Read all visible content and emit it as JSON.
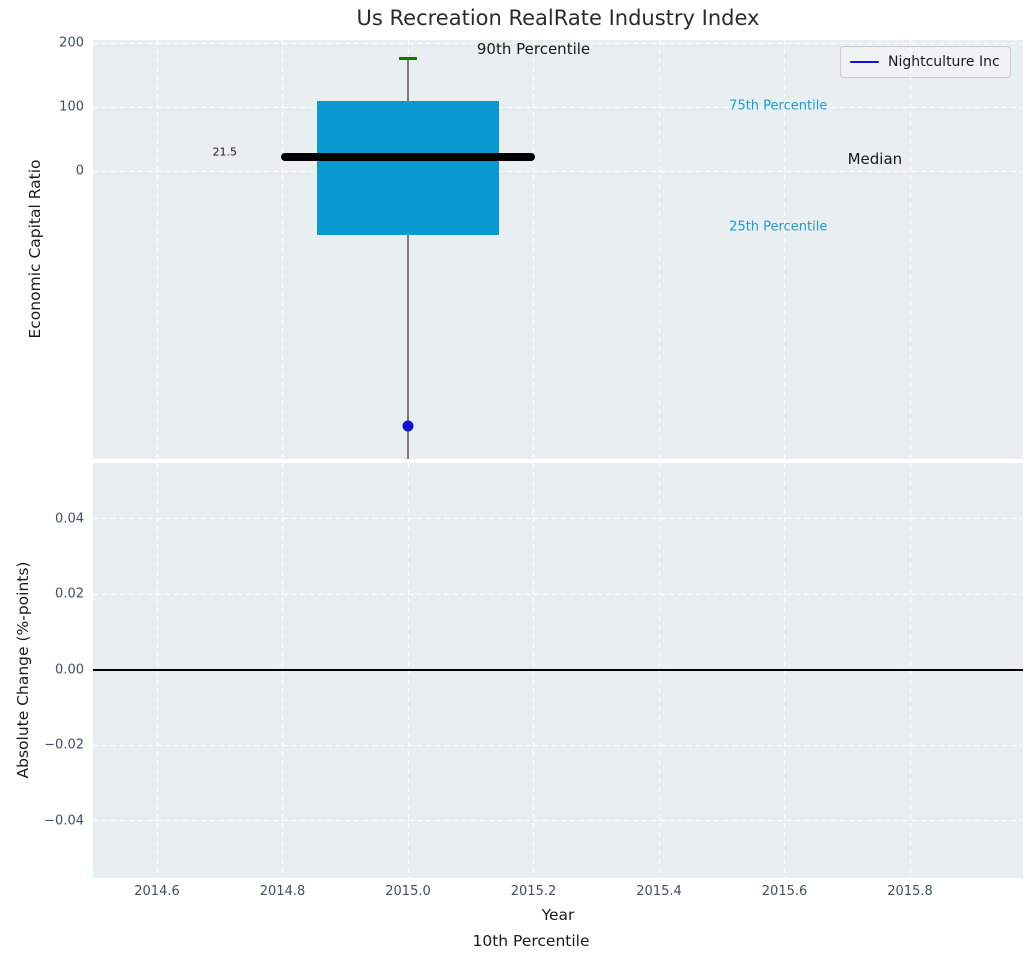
{
  "title": "Us Recreation RealRate Industry Index",
  "legend": {
    "label": "Nightculture Inc"
  },
  "colors": {
    "plot_background": "#e9eef0",
    "box_fill": "#0999d0",
    "percentile_label": "#1e9ccd",
    "whisker_cap_green": "#008001",
    "company_blue": "#1111d6",
    "median_black": "#000000",
    "tick_label": "#3d5066",
    "whisker_gray": "#7b7b7b"
  },
  "chart_data": [
    {
      "type": "boxplot",
      "title": "Us Recreation RealRate Industry Index",
      "ylabel": "Economic Capital Ratio",
      "xlim": [
        2014.498,
        2015.98
      ],
      "ylim": [
        -450,
        204.7
      ],
      "grid": "white dashed on light gray",
      "legend_position": "upper right",
      "ytick_values": [
        0,
        100,
        200
      ],
      "ytick_labels": [
        "0",
        "100",
        "200"
      ],
      "xtick_values": [
        2014.6,
        2014.8,
        2015.0,
        2015.2,
        2015.4,
        2015.6,
        2015.8
      ],
      "box": {
        "x": 2015.0,
        "p90": 176,
        "p75": 109,
        "median": 21.5,
        "p25": -100,
        "p10": null,
        "p10_note": "lower whisker extends below axis range (clipped at plot bottom); labeled under x-axis",
        "box_halfwidth": 0.145,
        "median_halfwidth": 0.202,
        "cap_halfwidth": 0.0145
      },
      "company_point": {
        "name": "Nightculture Inc",
        "x": 2015.0,
        "y": -399
      },
      "annotations": [
        {
          "text": "90th Percentile",
          "x": 2015.2,
          "y": 190.5,
          "size": 15,
          "color": "#1a1a1a"
        },
        {
          "text": "75th Percentile",
          "x": 2015.59,
          "y": 101,
          "size": 13,
          "color": "#1e9ccd"
        },
        {
          "text": "Median",
          "x": 2015.744,
          "y": 19,
          "size": 15,
          "color": "#1a1a1a"
        },
        {
          "text": "25th Percentile",
          "x": 2015.59,
          "y": -88,
          "size": 13,
          "color": "#1e9ccd"
        },
        {
          "text": "21.5",
          "x": 2014.708,
          "y": 29,
          "size": 11,
          "color": "#1a1a1a"
        }
      ]
    },
    {
      "type": "line",
      "ylabel": "Absolute Change (%-points)",
      "xlabel": "Year",
      "xlabel2": "10th Percentile",
      "xlim": [
        2014.498,
        2015.98
      ],
      "ylim": [
        -0.0551,
        0.0548
      ],
      "ytick_values": [
        0.04,
        0.02,
        0.0,
        -0.02,
        -0.04
      ],
      "ytick_labels": [
        "0.04",
        "0.02",
        "0.00",
        "−0.02",
        "−0.04"
      ],
      "xtick_values": [
        2014.6,
        2014.8,
        2015.0,
        2015.2,
        2015.4,
        2015.6,
        2015.8
      ],
      "xtick_labels": [
        "2014.6",
        "2014.8",
        "2015.0",
        "2015.2",
        "2015.4",
        "2015.6",
        "2015.8"
      ],
      "zero_line": 0.0,
      "series": []
    }
  ]
}
